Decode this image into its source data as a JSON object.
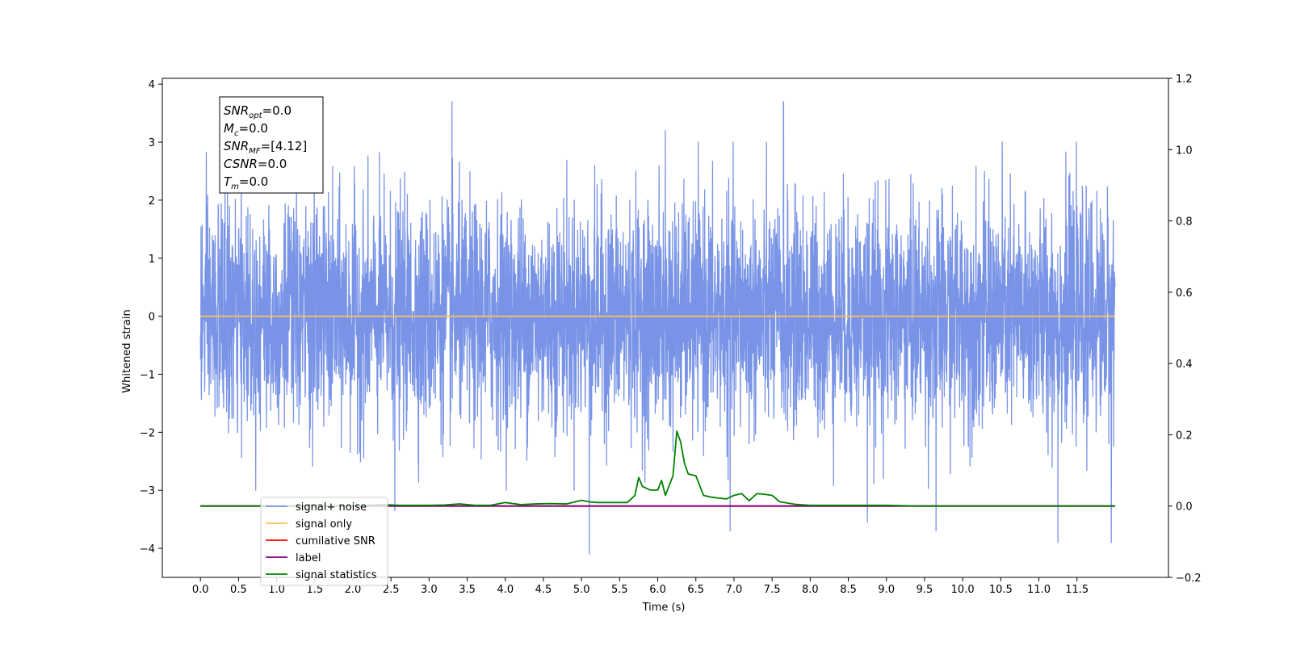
{
  "chart_data": {
    "type": "line",
    "title": "",
    "xlabel": "Time (s)",
    "ylabel": "Whitened strain",
    "ylabel_right": "",
    "xlim": [
      -0.5,
      12.7
    ],
    "ylim": [
      -4.5,
      4.1
    ],
    "ylim_right": [
      -0.2,
      1.2
    ],
    "x_ticks": [
      0.0,
      0.5,
      1.0,
      1.5,
      2.0,
      2.5,
      3.0,
      3.5,
      4.0,
      4.5,
      5.0,
      5.5,
      6.0,
      6.5,
      7.0,
      7.5,
      8.0,
      8.5,
      9.0,
      9.5,
      10.0,
      10.5,
      11.0,
      11.5
    ],
    "x_tick_labels": [
      "0.0",
      "0.5",
      "1.0",
      "1.5",
      "2.0",
      "2.5",
      "3.0",
      "3.5",
      "4.0",
      "4.5",
      "5.0",
      "5.5",
      "6.0",
      "6.5",
      "7.0",
      "7.5",
      "8.0",
      "8.5",
      "9.0",
      "9.5",
      "10.0",
      "10.5",
      "11.0",
      "11.5"
    ],
    "y_ticks": [
      -4,
      -3,
      -2,
      -1,
      0,
      1,
      2,
      3,
      4
    ],
    "y_tick_labels": [
      "−4",
      "−3",
      "−2",
      "−1",
      "0",
      "1",
      "2",
      "3",
      "4"
    ],
    "y_ticks_right": [
      -0.2,
      0.0,
      0.2,
      0.4,
      0.6,
      0.8,
      1.0,
      1.2
    ],
    "y_tick_labels_right": [
      "−0.2",
      "0.0",
      "0.2",
      "0.4",
      "0.6",
      "0.8",
      "1.0",
      "1.2"
    ],
    "grid": false,
    "legend_position": "bottom-left",
    "stats_box": [
      {
        "symbol": "SNR",
        "sub": "opt",
        "value": "=0.0"
      },
      {
        "symbol": "M",
        "sub": "c",
        "value": "=0.0"
      },
      {
        "symbol": "SNR",
        "sub": "MF",
        "value": "=[4.12]"
      },
      {
        "symbol": "CSNR",
        "sub": "",
        "value": "=0.0"
      },
      {
        "symbol": "T",
        "sub": "m",
        "value": "=0.0"
      }
    ],
    "series": [
      {
        "name": "signal+ noise",
        "color": "#7994e7",
        "axis": "left",
        "style": "noise",
        "x_range": [
          0.0,
          12.0
        ],
        "approx_envelope": [
          -2.5,
          2.5
        ],
        "peaks": [
          {
            "x": 3.3,
            "y": 3.7
          },
          {
            "x": 7.65,
            "y": 3.7
          },
          {
            "x": 6.1,
            "y": 3.2
          },
          {
            "x": 5.1,
            "y": -4.1
          },
          {
            "x": 11.95,
            "y": -3.9
          },
          {
            "x": 11.25,
            "y": -3.9
          },
          {
            "x": 9.65,
            "y": -3.7
          },
          {
            "x": 6.95,
            "y": -3.7
          },
          {
            "x": 8.75,
            "y": -3.55
          },
          {
            "x": 2.55,
            "y": -3.35
          }
        ]
      },
      {
        "name": "signal only",
        "color": "#ffbf55",
        "axis": "left",
        "x": [
          0.0,
          12.0
        ],
        "y": [
          0.0,
          0.0
        ]
      },
      {
        "name": "cumilative SNR",
        "color": "#ff0000",
        "axis": "right",
        "x": [
          0.0,
          12.0
        ],
        "y": [
          0.0,
          0.0
        ]
      },
      {
        "name": "label",
        "color": "#800080",
        "axis": "right",
        "x": [
          0.0,
          12.0
        ],
        "y": [
          0.0,
          0.0
        ]
      },
      {
        "name": "signal statistics",
        "color": "#008000",
        "axis": "right",
        "x": [
          0.0,
          1.5,
          2.0,
          2.4,
          2.6,
          3.0,
          3.2,
          3.4,
          3.6,
          3.8,
          4.0,
          4.2,
          4.4,
          4.6,
          4.8,
          5.0,
          5.1,
          5.2,
          5.4,
          5.6,
          5.7,
          5.75,
          5.8,
          5.9,
          6.0,
          6.05,
          6.1,
          6.2,
          6.25,
          6.3,
          6.35,
          6.4,
          6.5,
          6.6,
          6.7,
          6.9,
          7.0,
          7.1,
          7.2,
          7.3,
          7.4,
          7.5,
          7.6,
          7.8,
          8.0,
          8.2,
          8.4,
          8.8,
          9.0,
          9.4,
          10.0,
          11.0,
          12.0
        ],
        "y": [
          0.0,
          0.0,
          0.0,
          0.004,
          0.002,
          0.002,
          0.003,
          0.006,
          0.002,
          0.002,
          0.01,
          0.004,
          0.006,
          0.007,
          0.006,
          0.016,
          0.012,
          0.01,
          0.01,
          0.01,
          0.03,
          0.08,
          0.055,
          0.045,
          0.045,
          0.072,
          0.03,
          0.085,
          0.21,
          0.18,
          0.12,
          0.09,
          0.085,
          0.03,
          0.025,
          0.02,
          0.03,
          0.035,
          0.015,
          0.035,
          0.033,
          0.03,
          0.012,
          0.005,
          0.002,
          0.002,
          0.002,
          0.002,
          0.002,
          0.0,
          0.0,
          0.0,
          0.0
        ]
      }
    ],
    "legend_entries": [
      "signal+ noise",
      "signal only",
      "cumilative SNR",
      "label",
      "signal statistics"
    ]
  }
}
